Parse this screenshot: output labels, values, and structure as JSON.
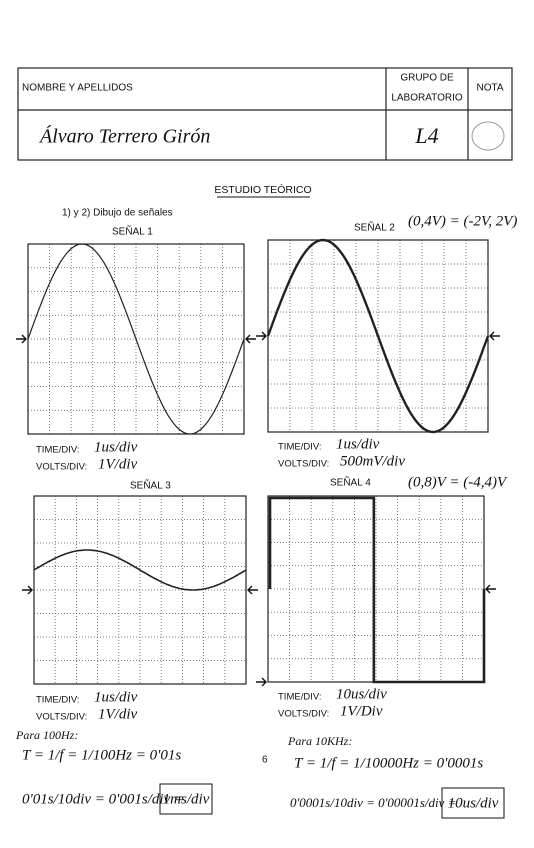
{
  "header": {
    "name_label": "NOMBRE Y APELLIDOS",
    "group_label": [
      "GRUPO DE",
      "LABORATORIO"
    ],
    "grade_label": "NOTA",
    "name": "Álvaro Terrero Girón",
    "group": "L4"
  },
  "section_title": "ESTUDIO TEÓRICO",
  "subtitle": "1) y 2) Dibujo de señales",
  "signals": [
    {
      "title": "SEÑAL 1",
      "time_div_label": "TIME/DIV:",
      "time_div": "1us/div",
      "volts_div_label": "VOLTS/DIV:",
      "volts_div": "1V/div"
    },
    {
      "title": "SEÑAL 2",
      "annotation": "(0,4V) = (-2V, 2V)",
      "time_div_label": "TIME/DIV:",
      "time_div": "1us/div",
      "volts_div_label": "VOLTS/DIV:",
      "volts_div": "500mV/div"
    },
    {
      "title": "SEÑAL 3",
      "time_div_label": "TIME/DIV:",
      "time_div": "1us/div",
      "volts_div_label": "VOLTS/DIV:",
      "volts_div": "1V/div"
    },
    {
      "title": "SEÑAL 4",
      "annotation": "(0,8)V = (-4,4)V",
      "time_div_label": "TIME/DIV:",
      "time_div": "10us/div",
      "volts_div_label": "VOLTS/DIV:",
      "volts_div": "1V/Div"
    }
  ],
  "notes": {
    "left": [
      "Para 100Hz:",
      "T = 1/f = 1/100Hz = 0'01s",
      "0'01s/10div = 0'001s/div =",
      "1ms/div"
    ],
    "right": [
      "Para 10KHz:",
      "T = 1/f = 1/10000Hz = 0'0001s",
      "0'0001s/10div = 0'00001s/div =",
      "10us/div"
    ]
  },
  "page_number": "6"
}
